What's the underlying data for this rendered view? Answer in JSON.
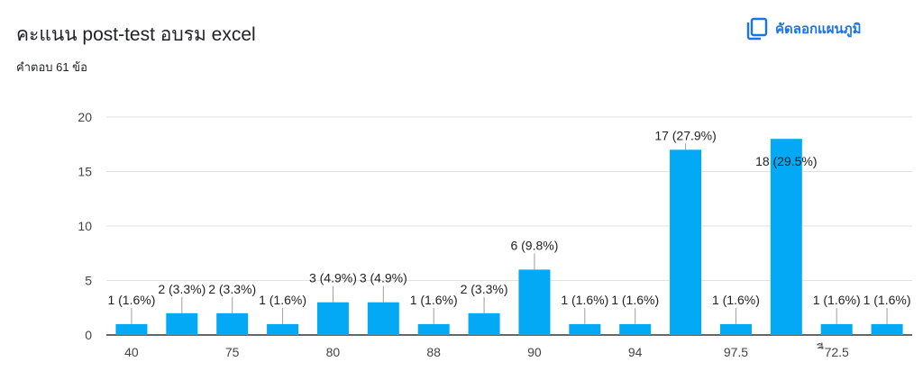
{
  "header": {
    "title": "คะแนน post-test อบรม excel",
    "subtitle": "คำตอบ 61 ข้อ",
    "copy_label": "คัดลอกแผนภูมิ",
    "copy_icon": "copy-icon",
    "accent_color": "#1a73e8"
  },
  "chart_data": {
    "type": "bar",
    "categories": [
      "40",
      "",
      "75",
      "",
      "80",
      "",
      "88",
      "",
      "90",
      "",
      "94",
      "",
      "97.5",
      "",
      "ืี72.5",
      ""
    ],
    "values": [
      1,
      2,
      2,
      1,
      3,
      3,
      1,
      2,
      6,
      1,
      1,
      17,
      1,
      18,
      1,
      1
    ],
    "data_labels": [
      "1 (1.6%)",
      "2 (3.3%)",
      "2 (3.3%)",
      "1 (1.6%)",
      "3 (4.9%)",
      "3 (4.9%)",
      "1 (1.6%)",
      "2 (3.3%)",
      "6 (9.8%)",
      "1 (1.6%)",
      "1 (1.6%)",
      "17 (27.9%)",
      "1 (1.6%)",
      "18 (29.5%)",
      "1 (1.6%)",
      "1 (1.6%)"
    ],
    "ylim": [
      0,
      20
    ],
    "yticks": [
      0,
      5,
      10,
      15,
      20
    ],
    "grid": true,
    "bar_color": "#03a9f4"
  }
}
